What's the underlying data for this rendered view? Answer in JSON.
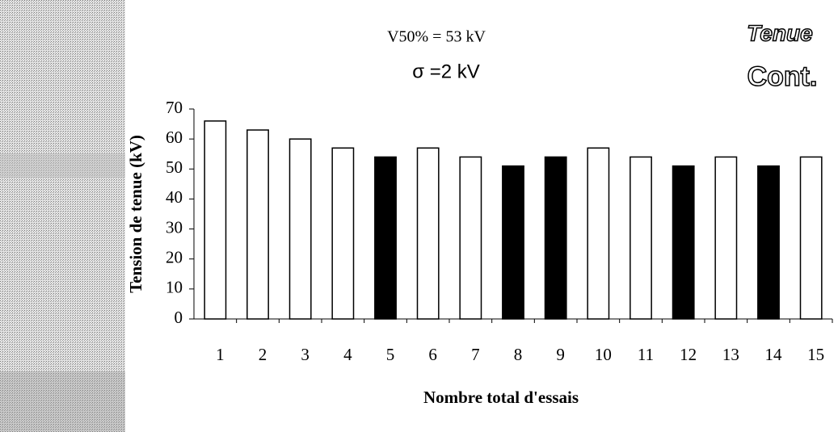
{
  "chart_data": {
    "type": "bar",
    "annotations": [
      "V50% = 53 kV",
      "σ =2 kV"
    ],
    "logo": [
      "Tenue",
      "Cont."
    ],
    "x_label": "Nombre total d'essais",
    "y_label": "Tension de tenue (kV)",
    "categories": [
      "1",
      "2",
      "3",
      "4",
      "5",
      "6",
      "7",
      "8",
      "9",
      "10",
      "11",
      "12",
      "13",
      "14",
      "15"
    ],
    "values": [
      66,
      63,
      60,
      57,
      54,
      57,
      54,
      51,
      54,
      57,
      54,
      51,
      54,
      51,
      54
    ],
    "colors": [
      "#ffffff",
      "#ffffff",
      "#ffffff",
      "#ffffff",
      "#000000",
      "#ffffff",
      "#ffffff",
      "#000000",
      "#000000",
      "#ffffff",
      "#ffffff",
      "#000000",
      "#ffffff",
      "#000000",
      "#ffffff"
    ],
    "ylim": [
      0,
      70
    ],
    "yticks": [
      0,
      10,
      20,
      30,
      40,
      50,
      60,
      70
    ]
  }
}
